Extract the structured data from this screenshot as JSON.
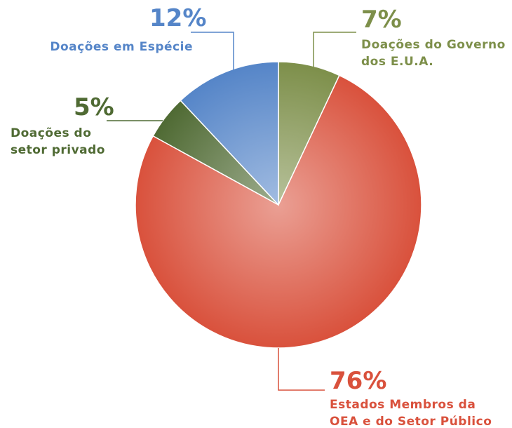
{
  "chart_data": {
    "type": "pie",
    "categories": [
      "Doações do Governo\ndos E.U.A.",
      "Estados Membros da\nOEA e do Setor Público",
      "Doações do\nsetor privado",
      "Doações em Espécie"
    ],
    "values": [
      7,
      76,
      5,
      12
    ],
    "value_labels": [
      "7%",
      "76%",
      "5%",
      "12%"
    ],
    "colors": [
      "#7d8f4a",
      "#d9513c",
      "#4f6a33",
      "#5585c8"
    ]
  }
}
